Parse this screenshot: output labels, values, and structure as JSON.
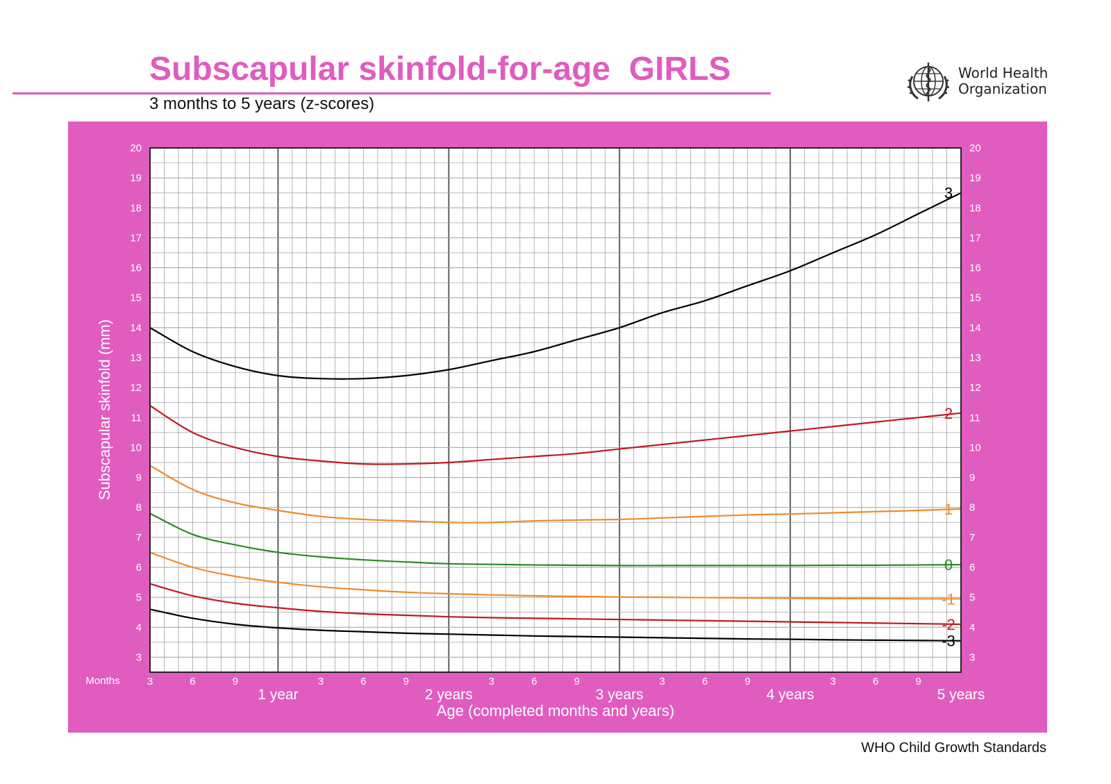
{
  "header": {
    "title": "Subscapular skinfold-for-age  GIRLS",
    "subtitle": "3 months to 5 years (z-scores)",
    "organization_line1": "World Health",
    "organization_line2": "Organization",
    "logo_icon": "who-emblem-icon"
  },
  "footer": {
    "text": "WHO Child Growth Standards"
  },
  "colors": {
    "brand_pink": "#e05cbf",
    "plot_background": "#ffffff",
    "grid_minor": "#a0a0a0",
    "grid_major": "#5e5e5e",
    "z3": "#000000",
    "z2": "#c0181e",
    "z1": "#f08a2a",
    "z0": "#2a8a25"
  },
  "chart_data": {
    "type": "line",
    "xlabel": "Age (completed months and years)",
    "ylabel": "Subscapular skinfold (mm)",
    "xlim": [
      3,
      60
    ],
    "ylim": [
      2.5,
      20
    ],
    "months_label": "Months",
    "y_ticks": [
      3,
      4,
      5,
      6,
      7,
      8,
      9,
      10,
      11,
      12,
      13,
      14,
      15,
      16,
      17,
      18,
      19,
      20
    ],
    "x_month_ticks": [
      {
        "x": 3,
        "label": "3"
      },
      {
        "x": 6,
        "label": "6"
      },
      {
        "x": 9,
        "label": "9"
      },
      {
        "x": 15,
        "label": "3"
      },
      {
        "x": 18,
        "label": "6"
      },
      {
        "x": 21,
        "label": "9"
      },
      {
        "x": 27,
        "label": "3"
      },
      {
        "x": 30,
        "label": "6"
      },
      {
        "x": 33,
        "label": "9"
      },
      {
        "x": 39,
        "label": "3"
      },
      {
        "x": 42,
        "label": "6"
      },
      {
        "x": 45,
        "label": "9"
      },
      {
        "x": 51,
        "label": "3"
      },
      {
        "x": 54,
        "label": "6"
      },
      {
        "x": 57,
        "label": "9"
      }
    ],
    "x_year_ticks": [
      {
        "x": 12,
        "label": "1 year"
      },
      {
        "x": 24,
        "label": "2 years"
      },
      {
        "x": 36,
        "label": "3 years"
      },
      {
        "x": 48,
        "label": "4 years"
      },
      {
        "x": 60,
        "label": "5 years"
      }
    ],
    "x": [
      3,
      6,
      9,
      12,
      15,
      18,
      21,
      24,
      27,
      30,
      33,
      36,
      39,
      42,
      45,
      48,
      51,
      54,
      57,
      60
    ],
    "series": [
      {
        "name": "3",
        "color": "#000000",
        "values": [
          14.0,
          13.2,
          12.7,
          12.4,
          12.3,
          12.3,
          12.4,
          12.6,
          12.9,
          13.2,
          13.6,
          14.0,
          14.5,
          14.9,
          15.4,
          15.9,
          16.5,
          17.1,
          17.8,
          18.5
        ]
      },
      {
        "name": "2",
        "color": "#c0181e",
        "values": [
          11.4,
          10.5,
          10.0,
          9.7,
          9.55,
          9.45,
          9.45,
          9.5,
          9.6,
          9.7,
          9.8,
          9.95,
          10.1,
          10.25,
          10.4,
          10.55,
          10.7,
          10.85,
          11.0,
          11.15
        ]
      },
      {
        "name": "1",
        "color": "#f08a2a",
        "values": [
          9.4,
          8.6,
          8.15,
          7.9,
          7.7,
          7.6,
          7.55,
          7.5,
          7.5,
          7.55,
          7.58,
          7.6,
          7.65,
          7.7,
          7.75,
          7.78,
          7.82,
          7.86,
          7.9,
          7.95
        ]
      },
      {
        "name": "0",
        "color": "#2a8a25",
        "values": [
          7.8,
          7.1,
          6.75,
          6.5,
          6.35,
          6.25,
          6.18,
          6.12,
          6.1,
          6.08,
          6.07,
          6.06,
          6.06,
          6.06,
          6.06,
          6.06,
          6.07,
          6.07,
          6.08,
          6.09
        ]
      },
      {
        "name": "-1",
        "color": "#f08a2a",
        "values": [
          6.5,
          6.0,
          5.7,
          5.5,
          5.35,
          5.25,
          5.17,
          5.12,
          5.08,
          5.05,
          5.03,
          5.01,
          5.0,
          4.99,
          4.98,
          4.97,
          4.96,
          4.96,
          4.95,
          4.95
        ]
      },
      {
        "name": "-2",
        "color": "#c0181e",
        "values": [
          5.45,
          5.05,
          4.8,
          4.65,
          4.53,
          4.45,
          4.4,
          4.35,
          4.32,
          4.3,
          4.28,
          4.26,
          4.24,
          4.22,
          4.2,
          4.18,
          4.16,
          4.14,
          4.12,
          4.1
        ]
      },
      {
        "name": "-3",
        "color": "#000000",
        "values": [
          4.6,
          4.3,
          4.1,
          3.98,
          3.9,
          3.85,
          3.8,
          3.77,
          3.74,
          3.71,
          3.69,
          3.67,
          3.65,
          3.63,
          3.61,
          3.6,
          3.58,
          3.57,
          3.56,
          3.55
        ]
      }
    ]
  }
}
